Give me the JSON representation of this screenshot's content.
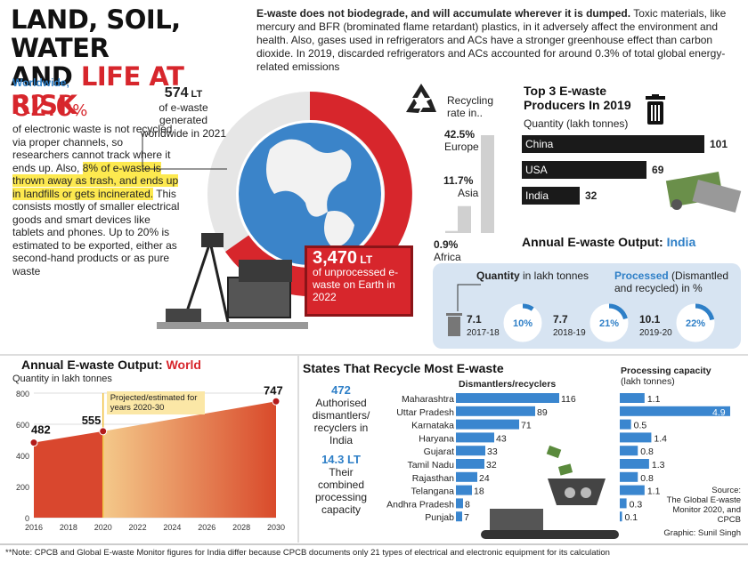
{
  "title": {
    "line1": "LAND, SOIL, WATER",
    "line2a": "AND ",
    "line2b": "LIFE AT RISK"
  },
  "intro": {
    "bold": "E-waste does not biodegrade, and will accumulate wherever it is dumped.",
    "text": " Toxic materials, like mercury and BFR (brominated flame retardant) plastics, in it adversely affect the environment and health. Also, gases used in refrigerators and ACs have a stronger greenhouse effect than carbon dioxide. In 2019, discarded refrigerators and ACs accounted for around 0.3% of total global energy-related emissions"
  },
  "worldwide": {
    "heading": "Worldwide,",
    "pct_num": "82.6",
    "pct_sign": "%",
    "text1": "of electronic waste is not recycled via proper channels, so researchers cannot track where it ends up. Also, ",
    "highlight": "8% of e-waste is thrown away as trash, and ends up in landfills or gets incinerated.",
    "text2": " This consists mostly of smaller electrical goods and smart devices like tablets and phones. Up to 20% is estimated to be exported, either as second-hand products or as pure waste"
  },
  "generated": {
    "value": "574",
    "unit": " LT",
    "text": "of e-waste generated worldwide in 2021"
  },
  "unprocessed": {
    "value": "3,470",
    "unit": " LT",
    "text": "of unprocessed e-waste on Earth in 2022"
  },
  "recycling": {
    "label_line1": "Recycling",
    "label_line2": "rate in..",
    "rates": [
      {
        "pct": "42.5%",
        "region": "Europe",
        "value": 42.5
      },
      {
        "pct": "11.7%",
        "region": "Asia",
        "value": 11.7
      },
      {
        "pct": "0.9%",
        "region": "Africa",
        "value": 0.9
      }
    ]
  },
  "producers": {
    "title_line1": "Top 3 E-waste",
    "title_line2": "Producers In 2019",
    "subtitle": "Quantity (lakh tonnes)",
    "items": [
      {
        "country": "China",
        "value": 101,
        "label": "101"
      },
      {
        "country": "USA",
        "value": 69,
        "label": "69"
      },
      {
        "country": "India",
        "value": 32,
        "label": "32"
      }
    ]
  },
  "india": {
    "title_a": "Annual E-waste Output: ",
    "title_b": "India",
    "qty_bold": "Quantity",
    "qty_rest": " in lakh tonnes",
    "proc_blue": "Processed",
    "proc_rest": " (Dismantled and recycled) in %",
    "years": [
      {
        "qty": "7.1",
        "year": "2017-18",
        "pct": "10%",
        "pct_value": 10
      },
      {
        "qty": "7.7",
        "year": "2018-19",
        "pct": "21%",
        "pct_value": 21
      },
      {
        "qty": "10.1",
        "year": "2019-20",
        "pct": "22%",
        "pct_value": 22
      }
    ]
  },
  "world": {
    "title_a": "Annual E-waste Output: ",
    "title_b": "World",
    "subtitle": "Quantity in lakh tonnes",
    "projected": "Projected/estimated for years 2020-30"
  },
  "states": {
    "title": "States That Recycle Most E-waste",
    "dism_header": "Dismantlers/recyclers",
    "cap_header_line1": "Processing capacity",
    "cap_header_line2": "(lakh tonnes)",
    "stat1_value": "472",
    "stat1_text": "Authorised dismantlers/ recyclers in India",
    "stat2_value": "14.3 LT",
    "stat2_text": "Their combined processing capacity"
  },
  "source": {
    "line1": "Source:",
    "line2": "The Global E-waste Monitor 2020, and CPCB",
    "line3": "Graphic: Sunil Singh"
  },
  "footnote": "**Note: CPCB and Global E-waste Monitor figures for India differ because CPCB documents only 21 types of electrical and electronic equipment for its calculation",
  "colors": {
    "red": "#d7262c",
    "blue": "#2e7fc7",
    "dark": "#1a1a1a",
    "panel": "#d7e4f2",
    "highlight": "#fde94f"
  },
  "chart_data": [
    {
      "type": "area",
      "title": "Annual E-waste Output: World",
      "ylabel": "Quantity in lakh tonnes",
      "x": [
        2016,
        2020,
        2030
      ],
      "values": [
        482,
        555,
        747
      ],
      "xticks": [
        "2016",
        "2018",
        "2020",
        "2022",
        "2024",
        "2026",
        "2028",
        "2030"
      ],
      "yticks": [
        "0",
        "200",
        "400",
        "600",
        "800"
      ],
      "xlim": [
        2016,
        2030
      ],
      "ylim": [
        0,
        800
      ],
      "grid": true
    },
    {
      "type": "bar",
      "title": "Dismantlers/recyclers",
      "categories": [
        "Maharashtra",
        "Uttar Pradesh",
        "Karnataka",
        "Haryana",
        "Gujarat",
        "Tamil Nadu",
        "Rajasthan",
        "Telangana",
        "Andhra Pradesh",
        "Punjab"
      ],
      "values": [
        116,
        89,
        71,
        43,
        33,
        32,
        24,
        18,
        8,
        7
      ]
    },
    {
      "type": "bar",
      "title": "Processing capacity (lakh tonnes)",
      "categories": [
        "Maharashtra",
        "Uttar Pradesh",
        "Karnataka",
        "Haryana",
        "Gujarat",
        "Tamil Nadu",
        "Rajasthan",
        "Telangana",
        "Andhra Pradesh",
        "Punjab"
      ],
      "values": [
        1.1,
        4.9,
        0.5,
        1.4,
        0.8,
        1.3,
        0.8,
        1.1,
        0.3,
        0.1
      ],
      "labels": [
        "1.1",
        "4.9",
        "0.5",
        "1.4",
        "0.8",
        "1.3",
        "0.8",
        "1.1",
        "0.3",
        "0.1"
      ]
    },
    {
      "type": "bar",
      "title": "Top 3 E-waste Producers In 2019",
      "categories": [
        "China",
        "USA",
        "India"
      ],
      "values": [
        101,
        69,
        32
      ]
    }
  ]
}
